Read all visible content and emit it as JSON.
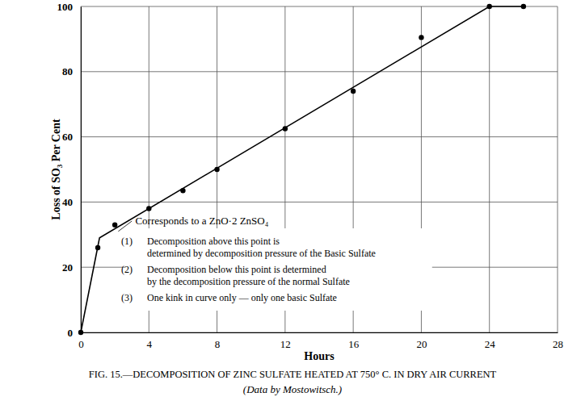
{
  "chart_data": {
    "type": "line",
    "title": "FIG. 15.—DECOMPOSITION OF ZINC SULFATE HEATED AT 750° C. IN DRY AIR CURRENT",
    "subtitle": "(Data by Mostowitsch.)",
    "x_label": "Hours",
    "y_label": "Loss of SO₃ Per Cent",
    "xlim": [
      0,
      28
    ],
    "ylim": [
      0,
      100
    ],
    "xticks": [
      0,
      4,
      8,
      12,
      16,
      20,
      24,
      28
    ],
    "yticks": [
      0,
      20,
      40,
      60,
      80,
      100
    ],
    "grid": true,
    "series": [
      {
        "type": "scatter",
        "marker": "circle",
        "color": "#000000",
        "x": [
          0,
          1,
          2,
          4,
          6,
          8,
          12,
          16,
          20,
          24,
          26
        ],
        "values": [
          0,
          26,
          33,
          38,
          43.5,
          50,
          62.5,
          74,
          90.5,
          100,
          100
        ]
      },
      {
        "type": "line",
        "line_style": "solid",
        "color": "#000000",
        "x": [
          0,
          1.1,
          24,
          26
        ],
        "values": [
          0,
          29,
          100,
          100
        ]
      }
    ],
    "annotations": [
      "Corresponds to a ZnO·2 ZnSO₄"
    ],
    "notes": [
      {
        "number": "(1)",
        "lines": [
          "Decomposition above this point is",
          "determined by decomposition pressure of the Basic Sulfate"
        ]
      },
      {
        "number": "(2)",
        "lines": [
          "Decomposition below this point is determined",
          "by the decomposition pressure of the normal Sulfate"
        ]
      },
      {
        "number": "(3)",
        "lines": [
          "One kink in curve only — only one basic Sulfate"
        ]
      }
    ]
  }
}
